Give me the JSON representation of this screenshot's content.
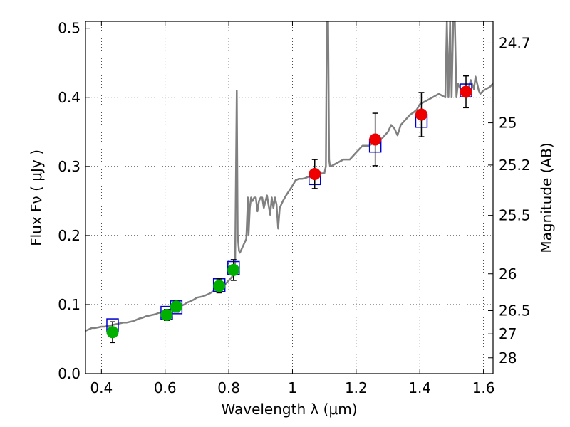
{
  "chart_data": {
    "type": "scatter",
    "xlabel": "Wavelength  λ (μm)",
    "ylabel": "Flux  Fν  ( μJy )",
    "y2label": "Magnitude (AB)",
    "xlim": [
      0.35,
      1.63
    ],
    "ylim": [
      0.0,
      0.51
    ],
    "x_ticks": [
      0.4,
      0.6,
      0.8,
      1.0,
      1.2,
      1.4,
      1.6
    ],
    "x_tick_labels": [
      "0.4",
      "0.6",
      "0.8",
      "1",
      "1.2",
      "1.4",
      "1.6"
    ],
    "y_ticks": [
      0.0,
      0.1,
      0.2,
      0.3,
      0.4,
      0.5
    ],
    "y_tick_labels": [
      "0.0",
      "0.1",
      "0.2",
      "0.3",
      "0.4",
      "0.5"
    ],
    "y2_ticks": [
      {
        "label": "24.7",
        "flux": 0.4786
      },
      {
        "label": "25",
        "flux": 0.3631
      },
      {
        "label": "25.2",
        "flux": 0.302
      },
      {
        "label": "25.5",
        "flux": 0.2291
      },
      {
        "label": "26",
        "flux": 0.1445
      },
      {
        "label": "26.5",
        "flux": 0.0912
      },
      {
        "label": "27",
        "flux": 0.0575
      },
      {
        "label": "28",
        "flux": 0.0229
      }
    ],
    "grid": true,
    "colors": {
      "spectrum": "#808080",
      "model_box": "#0000cc",
      "green_points": "#00b000",
      "red_points": "#ee0000",
      "error_bar": "#000000"
    },
    "series": [
      {
        "kind": "line",
        "x": [
          0.35,
          0.36,
          0.37,
          0.38,
          0.39,
          0.4,
          0.41,
          0.42,
          0.43,
          0.44,
          0.45,
          0.46,
          0.47,
          0.48,
          0.49,
          0.5,
          0.51,
          0.52,
          0.53,
          0.54,
          0.55,
          0.56,
          0.57,
          0.58,
          0.59,
          0.6,
          0.61,
          0.62,
          0.63,
          0.64,
          0.65,
          0.66,
          0.67,
          0.68,
          0.69,
          0.7,
          0.71,
          0.72,
          0.73,
          0.74,
          0.75,
          0.76,
          0.77,
          0.78,
          0.79,
          0.8,
          0.81,
          0.82,
          0.825,
          0.828,
          0.832,
          0.835,
          0.84,
          0.845,
          0.85,
          0.855,
          0.86,
          0.862,
          0.866,
          0.87,
          0.875,
          0.88,
          0.885,
          0.89,
          0.895,
          0.9,
          0.905,
          0.91,
          0.92,
          0.93,
          0.935,
          0.94,
          0.945,
          0.95,
          0.955,
          0.96,
          0.97,
          0.98,
          0.99,
          1.0,
          1.01,
          1.02,
          1.03,
          1.04,
          1.05,
          1.06,
          1.07,
          1.08,
          1.09,
          1.1,
          1.105,
          1.108,
          1.11,
          1.112,
          1.115,
          1.118,
          1.12,
          1.14,
          1.16,
          1.18,
          1.2,
          1.22,
          1.24,
          1.26,
          1.28,
          1.3,
          1.31,
          1.32,
          1.33,
          1.34,
          1.35,
          1.36,
          1.37,
          1.38,
          1.39,
          1.4,
          1.42,
          1.44,
          1.46,
          1.48,
          1.485,
          1.49,
          1.495,
          1.5,
          1.505,
          1.51,
          1.515,
          1.52,
          1.53,
          1.54,
          1.55,
          1.56,
          1.57,
          1.575,
          1.58,
          1.585,
          1.59,
          1.6,
          1.62,
          1.63
        ],
        "y": [
          0.062,
          0.064,
          0.066,
          0.066,
          0.067,
          0.068,
          0.068,
          0.069,
          0.07,
          0.071,
          0.072,
          0.073,
          0.074,
          0.074,
          0.075,
          0.076,
          0.078,
          0.08,
          0.081,
          0.083,
          0.084,
          0.085,
          0.086,
          0.088,
          0.089,
          0.09,
          0.091,
          0.092,
          0.094,
          0.096,
          0.098,
          0.1,
          0.103,
          0.105,
          0.107,
          0.11,
          0.111,
          0.112,
          0.114,
          0.116,
          0.119,
          0.121,
          0.124,
          0.127,
          0.13,
          0.135,
          0.14,
          0.16,
          0.41,
          0.2,
          0.178,
          0.175,
          0.18,
          0.185,
          0.19,
          0.195,
          0.255,
          0.2,
          0.24,
          0.255,
          0.25,
          0.255,
          0.255,
          0.235,
          0.25,
          0.255,
          0.255,
          0.24,
          0.258,
          0.23,
          0.255,
          0.24,
          0.255,
          0.245,
          0.21,
          0.24,
          0.25,
          0.258,
          0.265,
          0.272,
          0.28,
          0.282,
          0.282,
          0.283,
          0.285,
          0.286,
          0.286,
          0.286,
          0.29,
          0.29,
          0.3,
          0.51,
          0.51,
          0.51,
          0.31,
          0.3,
          0.3,
          0.305,
          0.31,
          0.31,
          0.32,
          0.33,
          0.33,
          0.335,
          0.34,
          0.35,
          0.36,
          0.355,
          0.345,
          0.36,
          0.365,
          0.37,
          0.375,
          0.378,
          0.382,
          0.39,
          0.395,
          0.4,
          0.405,
          0.4,
          0.51,
          0.4,
          0.51,
          0.4,
          0.51,
          0.51,
          0.4,
          0.42,
          0.41,
          0.405,
          0.408,
          0.425,
          0.412,
          0.43,
          0.42,
          0.41,
          0.405,
          0.41,
          0.415,
          0.42
        ]
      },
      {
        "kind": "model_boxes",
        "x": [
          0.435,
          0.605,
          0.635,
          0.77,
          0.815,
          1.07,
          1.26,
          1.405,
          1.545
        ],
        "y": [
          0.07,
          0.088,
          0.096,
          0.128,
          0.153,
          0.283,
          0.33,
          0.366,
          0.41
        ]
      },
      {
        "kind": "points_green",
        "x": [
          0.435,
          0.605,
          0.635,
          0.77,
          0.815
        ],
        "y": [
          0.06,
          0.085,
          0.097,
          0.127,
          0.15
        ],
        "err": [
          0.015,
          0.008,
          0.008,
          0.01,
          0.015
        ]
      },
      {
        "kind": "points_red",
        "x": [
          1.07,
          1.26,
          1.405,
          1.545
        ],
        "y": [
          0.289,
          0.339,
          0.375,
          0.408
        ],
        "err": [
          0.021,
          0.038,
          0.032,
          0.023
        ]
      }
    ]
  }
}
